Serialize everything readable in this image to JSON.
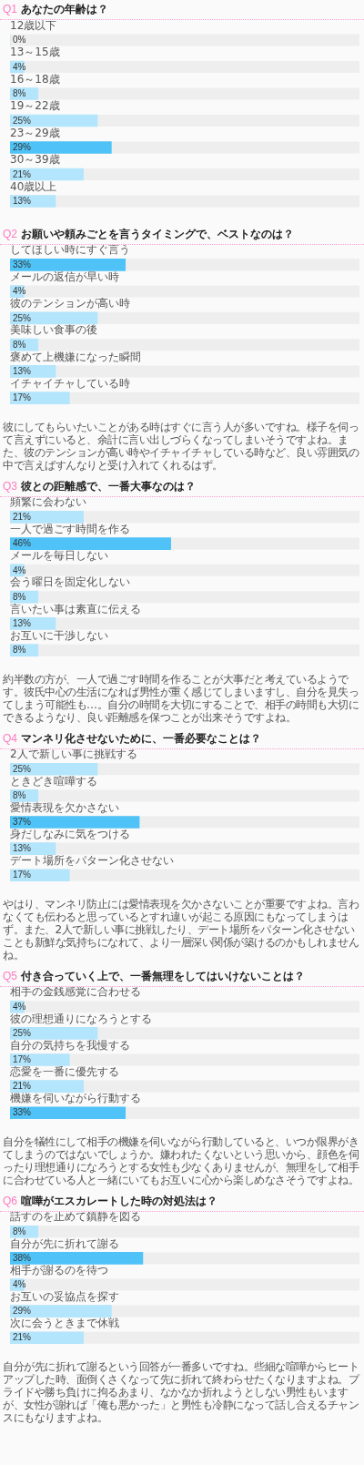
{
  "chart_data": [
    {
      "type": "bar",
      "orientation": "horizontal",
      "title": "Q1 あなたの年齢は？",
      "categories": [
        "12歳以下",
        "13～15歳",
        "16～18歳",
        "19～22歳",
        "23～29歳",
        "30～39歳",
        "40歳以上"
      ],
      "values": [
        0,
        4,
        8,
        25,
        29,
        21,
        13
      ],
      "colors": [
        "#b3e5fc",
        "#b3e5fc",
        "#b3e5fc",
        "#b3e5fc",
        "#4fc3f7",
        "#b3e5fc",
        "#b3e5fc"
      ],
      "value_labels": [
        "0%",
        "4%",
        "8%",
        "25%",
        "29%",
        "21%",
        "13%"
      ],
      "xlim": [
        0,
        100
      ],
      "tick_labels": "y"
    },
    {
      "type": "bar",
      "orientation": "horizontal",
      "title": "Q2 お願いや頼みごとを言うタイミングで、ベストなのは？",
      "categories": [
        "してほしい時にすぐ言う",
        "メールの返信が早い時",
        "彼のテンションが高い時",
        "美味しい食事の後",
        "褒めて上機嫌になった瞬間",
        "イチャイチャしている時"
      ],
      "values": [
        33,
        4,
        25,
        8,
        13,
        17
      ],
      "colors": [
        "#4fc3f7",
        "#b3e5fc",
        "#b3e5fc",
        "#b3e5fc",
        "#b3e5fc",
        "#b3e5fc"
      ],
      "value_labels": [
        "33%",
        "4%",
        "25%",
        "8%",
        "13%",
        "17%"
      ],
      "xlim": [
        0,
        100
      ],
      "tick_labels": "y",
      "annotations": [
        "彼にしてもらいたいことがある時はすぐに言う人が多いですね。様子を伺って言えずにいると、余計に言い出しづらくなってしまいそうですよね。また、彼のテンションが高い時やイチャイチャしている時など、良い雰囲気の中で言えばすんなりと受け入れてくれるはず。"
      ]
    },
    {
      "type": "bar",
      "orientation": "horizontal",
      "title": "Q3 彼との距離感で、一番大事なのは？",
      "categories": [
        "頻繁に会わない",
        "一人で過ごす時間を作る",
        "メールを毎日しない",
        "会う曜日を固定化しない",
        "言いたい事は素直に伝える",
        "お互いに干渉しない"
      ],
      "values": [
        21,
        46,
        4,
        8,
        13,
        8
      ],
      "colors": [
        "#b3e5fc",
        "#4fc3f7",
        "#b3e5fc",
        "#b3e5fc",
        "#b3e5fc",
        "#b3e5fc"
      ],
      "value_labels": [
        "21%",
        "46%",
        "4%",
        "8%",
        "13%",
        "8%"
      ],
      "xlim": [
        0,
        100
      ],
      "tick_labels": "y",
      "annotations": [
        "約半数の方が、一人で過ごす時間を作ることが大事だと考えているようです。彼氏中心の生活になれば男性が重く感じてしまいますし、自分を見失ってしまう可能性も…。自分の時間を大切にすることで、相手の時間も大切にできるようなり、良い距離感を保つことが出来そうですよね。"
      ]
    },
    {
      "type": "bar",
      "orientation": "horizontal",
      "title": "Q4 マンネリ化させないために、一番必要なことは？",
      "categories": [
        "2人で新しい事に挑戦する",
        "ときどき喧嘩する",
        "愛情表現を欠かさない",
        "身だしなみに気をつける",
        "デート場所をパターン化させない"
      ],
      "values": [
        25,
        8,
        37,
        13,
        17
      ],
      "colors": [
        "#b3e5fc",
        "#b3e5fc",
        "#4fc3f7",
        "#b3e5fc",
        "#b3e5fc"
      ],
      "value_labels": [
        "25%",
        "8%",
        "37%",
        "13%",
        "17%"
      ],
      "xlim": [
        0,
        100
      ],
      "tick_labels": "y",
      "annotations": [
        "やはり、マンネリ防止には愛情表現を欠かさないことが重要ですよね。言わなくても伝わると思っているとすれ違いが起こる原因にもなってしまうはず。また、2人で新しい事に挑戦したり、デート場所をパターン化させないことも新鮮な気持ちになれて、より一層深い関係が築けるのかもしれませんね。"
      ]
    },
    {
      "type": "bar",
      "orientation": "horizontal",
      "title": "Q5 付き合っていく上で、一番無理をしてはいけないことは？",
      "categories": [
        "相手の金銭感覚に合わせる",
        "彼の理想通りになろうとする",
        "自分の気持ちを我慢する",
        "恋愛を一番に優先する",
        "機嫌を伺いながら行動する"
      ],
      "values": [
        4,
        25,
        17,
        21,
        33
      ],
      "colors": [
        "#b3e5fc",
        "#b3e5fc",
        "#b3e5fc",
        "#b3e5fc",
        "#4fc3f7"
      ],
      "value_labels": [
        "4%",
        "25%",
        "17%",
        "21%",
        "33%"
      ],
      "xlim": [
        0,
        100
      ],
      "tick_labels": "y",
      "annotations": [
        "自分を犠牲にして相手の機嫌を伺いながら行動していると、いつか限界がきてしまうのではないでしょうか。嫌われたくないという思いから、顔色を伺ったり理想通りになろうとする女性も少なくありませんが、無理をして相手に合わせている人と一緒にいてもお互いに心から楽しめなさそうですよね。"
      ]
    },
    {
      "type": "bar",
      "orientation": "horizontal",
      "title": "Q6 喧嘩がエスカレートした時の対処法は？",
      "categories": [
        "話すのを止めて鎮静を図る",
        "自分が先に折れて謝る",
        "相手が謝るのを待つ",
        "お互いの妥協点を探す",
        "次に会うときまで休戦"
      ],
      "values": [
        8,
        38,
        4,
        29,
        21
      ],
      "colors": [
        "#b3e5fc",
        "#4fc3f7",
        "#b3e5fc",
        "#b3e5fc",
        "#b3e5fc"
      ],
      "value_labels": [
        "8%",
        "38%",
        "4%",
        "29%",
        "21%"
      ],
      "xlim": [
        0,
        100
      ],
      "tick_labels": "y",
      "annotations": [
        "自分が先に折れて謝るという回答が一番多いですね。些細な喧嘩からヒートアップした時、面倒くさくなって先に折れて終わらせたくなりますよね。プライドや勝ち負けに拘るあまり、なかなか折れようとしない男性もいますが、女性が謝れば「俺も悪かった」と男性も冷静になって話し合えるチャンスにもなりますよね。"
      ]
    }
  ]
}
